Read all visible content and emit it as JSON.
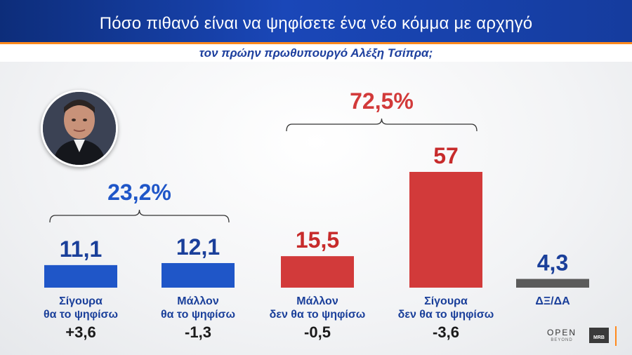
{
  "header": {
    "title": "Πόσο πιθανό είναι να ψηφίσετε ένα νέο κόμμα με αρχηγό",
    "subtitle": "τον πρώην πρωθυπουργό Αλέξη Τσίπρα;"
  },
  "chart_data": {
    "type": "bar",
    "title": "Πόσο πιθανό είναι να ψηφίσετε ένα νέο κόμμα με αρχηγό τον πρώην πρωθυπουργό Αλέξη Τσίπρα;",
    "categories": [
      [
        "Σίγουρα",
        "θα το ψηφίσω"
      ],
      [
        "Μάλλον",
        "θα το ψηφίσω"
      ],
      [
        "Μάλλον",
        "δεν θα το ψηφίσω"
      ],
      [
        "Σίγουρα",
        "δεν θα το ψηφίσω"
      ],
      [
        "ΔΞ/ΔΑ"
      ]
    ],
    "values": [
      11.1,
      12.1,
      15.5,
      57,
      4.3
    ],
    "value_labels": [
      "11,1",
      "12,1",
      "15,5",
      "57",
      "4,3"
    ],
    "changes": [
      "+3,6",
      "-1,3",
      "-0,5",
      "-3,6",
      ""
    ],
    "colors": [
      "#1f56c8",
      "#1f56c8",
      "#d23a3a",
      "#d23a3a",
      "#5b5b5b"
    ],
    "value_colors": [
      "#1a3f9a",
      "#1a3f9a",
      "#c72b2b",
      "#c72b2b",
      "#1a3f9a"
    ],
    "label_color": "#1a3f9a",
    "groups": [
      {
        "total": "23,2%",
        "color": "#1f56c8",
        "bars": [
          0,
          1
        ]
      },
      {
        "total": "72,5%",
        "color": "#d23a3a",
        "bars": [
          2,
          3
        ]
      }
    ]
  },
  "branding": {
    "open": "OPEN",
    "open_sub": "BEYOND",
    "mrb": "MRB"
  }
}
